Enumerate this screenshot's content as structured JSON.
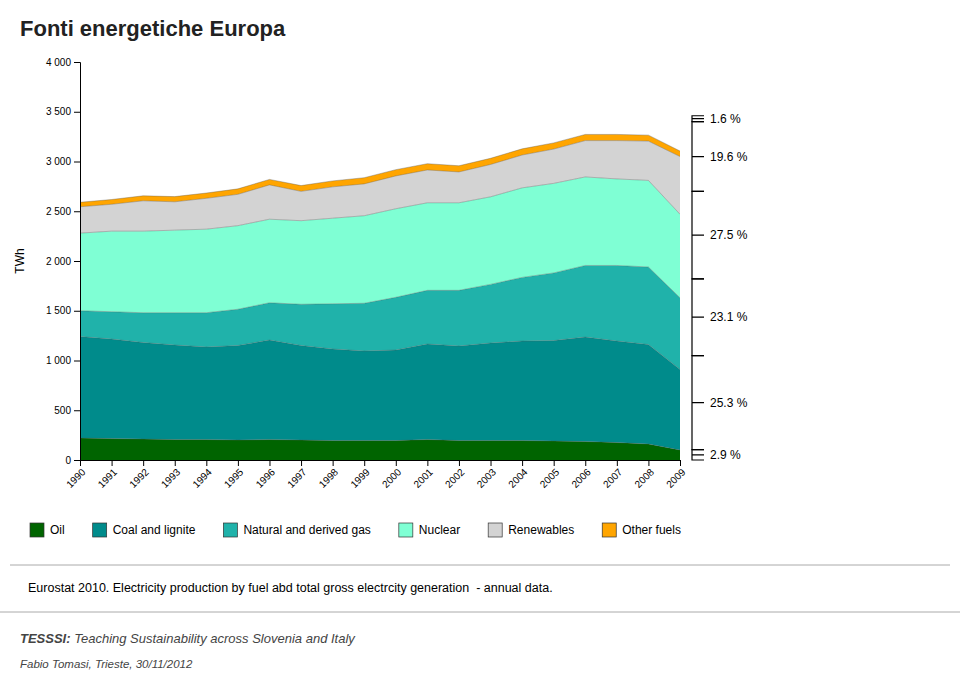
{
  "chart_data": {
    "type": "area",
    "stacked": true,
    "title": "Fonti energetiche Europa",
    "y_label": "TWh",
    "x": [
      1990,
      1991,
      1992,
      1993,
      1994,
      1995,
      1996,
      1997,
      1998,
      1999,
      2000,
      2001,
      2002,
      2003,
      2004,
      2005,
      2006,
      2007,
      2008,
      2009
    ],
    "xlim": [
      1990,
      2009
    ],
    "xticks": [
      1990,
      1991,
      1992,
      1993,
      1994,
      1995,
      1996,
      1997,
      1998,
      1999,
      2000,
      2001,
      2002,
      2003,
      2004,
      2005,
      2006,
      2007,
      2008,
      2009
    ],
    "ylim": [
      0,
      4000
    ],
    "yticks": [
      0,
      500,
      {
        "value": 1000,
        "label": "1 000"
      },
      {
        "value": 1500,
        "label": "1 500"
      },
      {
        "value": 2000,
        "label": "2 000"
      },
      {
        "value": 2500,
        "label": "2 500"
      },
      {
        "value": 3000,
        "label": "3 000"
      },
      {
        "value": 3500,
        "label": "3 500"
      },
      {
        "value": 4000,
        "label": "4 000"
      }
    ],
    "grid": false,
    "legend": "bottom",
    "series": [
      {
        "name": "Oil",
        "color": "#006400",
        "values": [
          220,
          215,
          210,
          205,
          205,
          200,
          205,
          200,
          195,
          195,
          195,
          205,
          195,
          195,
          195,
          190,
          185,
          175,
          160,
          100
        ]
      },
      {
        "name": "Coal and lignite",
        "color": "#008B8B",
        "values": [
          1020,
          1000,
          970,
          950,
          930,
          950,
          1000,
          950,
          920,
          900,
          910,
          960,
          950,
          980,
          1000,
          1010,
          1050,
          1020,
          1000,
          810
        ]
      },
      {
        "name": "Natural and derived gas",
        "color": "#20B2AA",
        "values": [
          260,
          275,
          300,
          325,
          345,
          365,
          375,
          415,
          455,
          480,
          530,
          540,
          560,
          590,
          640,
          680,
          720,
          760,
          780,
          720
        ]
      },
      {
        "name": "Nuclear",
        "color": "#7FFFD4",
        "values": [
          780,
          810,
          820,
          830,
          840,
          840,
          840,
          840,
          860,
          880,
          890,
          880,
          880,
          880,
          900,
          900,
          890,
          870,
          870,
          840
        ]
      },
      {
        "name": "Renewables",
        "color": "#D3D3D3",
        "values": [
          265,
          270,
          305,
          285,
          310,
          315,
          345,
          295,
          315,
          320,
          330,
          330,
          310,
          325,
          330,
          345,
          365,
          385,
          395,
          580
        ]
      },
      {
        "name": "Other fuels",
        "color": "#FFA500",
        "values": [
          45,
          48,
          50,
          52,
          53,
          55,
          55,
          58,
          60,
          62,
          63,
          63,
          62,
          62,
          62,
          62,
          62,
          62,
          60,
          55
        ]
      }
    ],
    "annotations": [
      {
        "text": "1.6 %",
        "range": [
          3400,
          3460
        ]
      },
      {
        "text": "19.6 %",
        "range": [
          2700,
          3400
        ]
      },
      {
        "text": "27.5 %",
        "range": [
          1820,
          2700
        ]
      },
      {
        "text": "23.1 %",
        "range": [
          1050,
          1820
        ]
      },
      {
        "text": "25.3 %",
        "range": [
          105,
          1050
        ]
      },
      {
        "text": "2.9 %",
        "range": [
          0,
          105
        ]
      }
    ],
    "source": "Eurostat 2010. Electricity production by fuel abd total gross electrcity generation  - annual data.",
    "credits": [
      "TESSSI:",
      " Teaching Sustainability across Slovenia and Italy",
      "Fabio Tomasi, Trieste, 30/11/2012"
    ]
  }
}
